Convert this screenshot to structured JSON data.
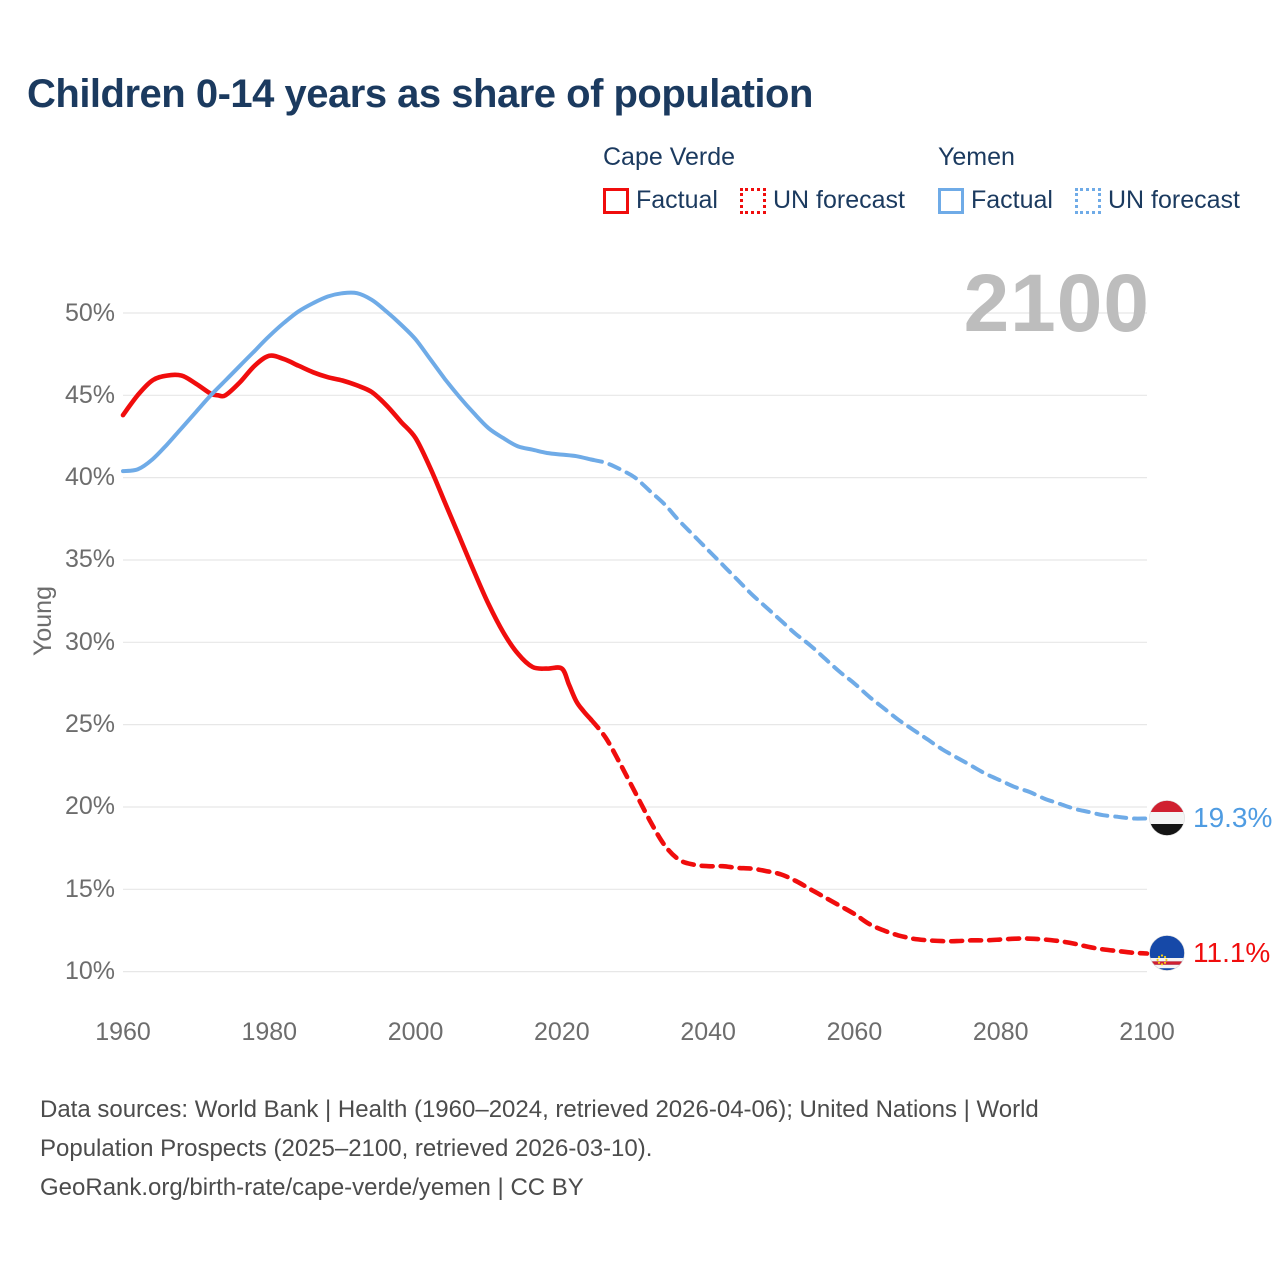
{
  "title": "Children 0-14 years as share of population",
  "watermark": "2100",
  "colors": {
    "red_line": "#f00d0d",
    "blue_line": "#6fabe7",
    "blue_label": "#4f9ce2",
    "grid": "#e7e7e7",
    "title_navy": "#1b3a5f",
    "axis_gray": "#6d6d6d",
    "watermark_gray": "#bdbdbd"
  },
  "legend": {
    "groups": [
      {
        "country": "Cape Verde",
        "items": [
          {
            "label": "Factual",
            "style": "solid"
          },
          {
            "label": "UN forecast",
            "style": "dotted"
          }
        ]
      },
      {
        "country": "Yemen",
        "items": [
          {
            "label": "Factual",
            "style": "solid"
          },
          {
            "label": "UN forecast",
            "style": "dotted"
          }
        ]
      }
    ]
  },
  "y_axis": {
    "title": "Young"
  },
  "end_labels": [
    {
      "country": "Yemen",
      "value": 19.3,
      "value_label": "19.3%"
    },
    {
      "country": "Cape Verde",
      "value": 11.1,
      "value_label": "11.1%"
    }
  ],
  "footer": {
    "lines": [
      "Data sources: World Bank | Health (1960–2024, retrieved 2026-04-06); United Nations | World",
      "Population Prospects (2025–2100, retrieved 2026-03-10).",
      "GeoRank.org/birth-rate/cape-verde/yemen | CC BY"
    ]
  },
  "chart_data": {
    "type": "line",
    "title": "Children 0-14 years as share of population",
    "xlabel": "",
    "ylabel": "Young",
    "xlim": [
      1960,
      2100
    ],
    "ylim": [
      10,
      50
    ],
    "x_ticks": [
      1960,
      1980,
      2000,
      2020,
      2040,
      2060,
      2080,
      2100
    ],
    "y_ticks_percent": [
      50,
      45,
      40,
      35,
      30,
      25,
      20,
      15,
      10
    ],
    "grid": "horizontal",
    "legend_position": "top-right",
    "series": [
      {
        "name": "Cape Verde — Factual",
        "color": "red",
        "style": "solid",
        "points": [
          [
            1960,
            43.8
          ],
          [
            1962,
            45.0
          ],
          [
            1964,
            45.9
          ],
          [
            1966,
            46.2
          ],
          [
            1968,
            46.2
          ],
          [
            1970,
            45.7
          ],
          [
            1972,
            45.1
          ],
          [
            1973,
            45.0
          ],
          [
            1974,
            45.0
          ],
          [
            1976,
            45.8
          ],
          [
            1978,
            46.8
          ],
          [
            1980,
            47.4
          ],
          [
            1982,
            47.2
          ],
          [
            1984,
            46.8
          ],
          [
            1986,
            46.4
          ],
          [
            1988,
            46.1
          ],
          [
            1990,
            45.9
          ],
          [
            1992,
            45.6
          ],
          [
            1994,
            45.2
          ],
          [
            1996,
            44.4
          ],
          [
            1998,
            43.4
          ],
          [
            2000,
            42.4
          ],
          [
            2002,
            40.6
          ],
          [
            2004,
            38.5
          ],
          [
            2006,
            36.4
          ],
          [
            2008,
            34.3
          ],
          [
            2010,
            32.3
          ],
          [
            2012,
            30.6
          ],
          [
            2014,
            29.3
          ],
          [
            2016,
            28.5
          ],
          [
            2018,
            28.4
          ],
          [
            2020,
            28.4
          ],
          [
            2021,
            27.4
          ],
          [
            2022,
            26.4
          ],
          [
            2023,
            25.8
          ],
          [
            2024,
            25.3
          ]
        ]
      },
      {
        "name": "Cape Verde — UN forecast",
        "color": "red",
        "style": "dashed",
        "points": [
          [
            2024,
            25.3
          ],
          [
            2026,
            24.2
          ],
          [
            2028,
            22.6
          ],
          [
            2030,
            20.9
          ],
          [
            2032,
            19.2
          ],
          [
            2034,
            17.7
          ],
          [
            2036,
            16.8
          ],
          [
            2038,
            16.5
          ],
          [
            2040,
            16.4
          ],
          [
            2042,
            16.4
          ],
          [
            2044,
            16.3
          ],
          [
            2046,
            16.25
          ],
          [
            2048,
            16.1
          ],
          [
            2050,
            15.9
          ],
          [
            2052,
            15.5
          ],
          [
            2054,
            15.0
          ],
          [
            2056,
            14.5
          ],
          [
            2058,
            14.0
          ],
          [
            2060,
            13.5
          ],
          [
            2062,
            12.9
          ],
          [
            2064,
            12.5
          ],
          [
            2066,
            12.2
          ],
          [
            2068,
            12.0
          ],
          [
            2070,
            11.9
          ],
          [
            2072,
            11.85
          ],
          [
            2074,
            11.85
          ],
          [
            2076,
            11.9
          ],
          [
            2078,
            11.9
          ],
          [
            2080,
            11.95
          ],
          [
            2082,
            12.0
          ],
          [
            2084,
            12.0
          ],
          [
            2086,
            11.95
          ],
          [
            2088,
            11.85
          ],
          [
            2090,
            11.7
          ],
          [
            2092,
            11.5
          ],
          [
            2094,
            11.35
          ],
          [
            2096,
            11.25
          ],
          [
            2098,
            11.15
          ],
          [
            2100,
            11.1
          ]
        ]
      },
      {
        "name": "Yemen — Factual",
        "color": "blue",
        "style": "solid",
        "points": [
          [
            1960,
            40.4
          ],
          [
            1962,
            40.5
          ],
          [
            1964,
            41.1
          ],
          [
            1966,
            42.0
          ],
          [
            1968,
            43.0
          ],
          [
            1970,
            44.0
          ],
          [
            1972,
            45.0
          ],
          [
            1974,
            45.9
          ],
          [
            1976,
            46.8
          ],
          [
            1978,
            47.7
          ],
          [
            1980,
            48.6
          ],
          [
            1982,
            49.4
          ],
          [
            1984,
            50.1
          ],
          [
            1986,
            50.6
          ],
          [
            1988,
            51.0
          ],
          [
            1990,
            51.2
          ],
          [
            1992,
            51.2
          ],
          [
            1994,
            50.8
          ],
          [
            1996,
            50.1
          ],
          [
            1998,
            49.3
          ],
          [
            2000,
            48.4
          ],
          [
            2002,
            47.2
          ],
          [
            2004,
            46.0
          ],
          [
            2006,
            44.9
          ],
          [
            2008,
            43.9
          ],
          [
            2010,
            43.0
          ],
          [
            2012,
            42.4
          ],
          [
            2014,
            41.9
          ],
          [
            2016,
            41.7
          ],
          [
            2018,
            41.5
          ],
          [
            2020,
            41.4
          ],
          [
            2022,
            41.3
          ],
          [
            2024,
            41.1
          ]
        ]
      },
      {
        "name": "Yemen — UN forecast",
        "color": "blue",
        "style": "dashed",
        "points": [
          [
            2024,
            41.1
          ],
          [
            2026,
            40.9
          ],
          [
            2028,
            40.5
          ],
          [
            2030,
            40.0
          ],
          [
            2032,
            39.2
          ],
          [
            2034,
            38.4
          ],
          [
            2036,
            37.4
          ],
          [
            2038,
            36.5
          ],
          [
            2040,
            35.6
          ],
          [
            2042,
            34.7
          ],
          [
            2044,
            33.8
          ],
          [
            2046,
            32.9
          ],
          [
            2048,
            32.1
          ],
          [
            2050,
            31.3
          ],
          [
            2052,
            30.5
          ],
          [
            2054,
            29.8
          ],
          [
            2056,
            29.0
          ],
          [
            2058,
            28.2
          ],
          [
            2060,
            27.5
          ],
          [
            2062,
            26.7
          ],
          [
            2064,
            26.0
          ],
          [
            2066,
            25.3
          ],
          [
            2068,
            24.7
          ],
          [
            2070,
            24.1
          ],
          [
            2072,
            23.5
          ],
          [
            2074,
            23.0
          ],
          [
            2076,
            22.5
          ],
          [
            2078,
            22.0
          ],
          [
            2080,
            21.6
          ],
          [
            2082,
            21.2
          ],
          [
            2084,
            20.9
          ],
          [
            2086,
            20.5
          ],
          [
            2088,
            20.2
          ],
          [
            2090,
            19.9
          ],
          [
            2092,
            19.7
          ],
          [
            2094,
            19.5
          ],
          [
            2096,
            19.4
          ],
          [
            2098,
            19.3
          ],
          [
            2100,
            19.3
          ]
        ]
      }
    ]
  }
}
